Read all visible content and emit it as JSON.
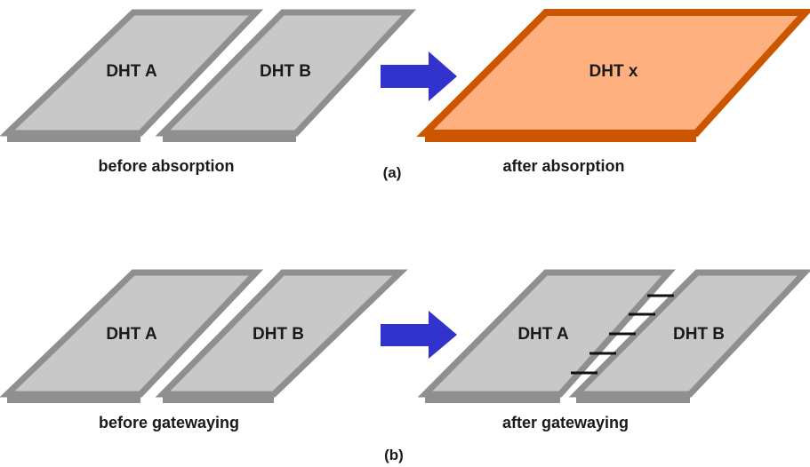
{
  "panel_a": {
    "id_label": "(a)",
    "before": {
      "caption": "before absorption",
      "dht_left": "DHT A",
      "dht_right": "DHT B"
    },
    "after": {
      "caption": "after absorption",
      "dht_merged": "DHT x"
    }
  },
  "panel_b": {
    "id_label": "(b)",
    "before": {
      "caption": "before gatewaying",
      "dht_left": "DHT A",
      "dht_right": "DHT B"
    },
    "after": {
      "caption": "after gatewaying",
      "dht_left": "DHT A",
      "dht_right": "DHT B"
    }
  },
  "colors": {
    "dht_fill": "#c8c8c8",
    "dht_edge": "#8f8f8f",
    "merged_fill": "#ffb07f",
    "merged_edge": "#cc5500",
    "arrow": "#3232cc",
    "gateway_link": "#111111"
  }
}
